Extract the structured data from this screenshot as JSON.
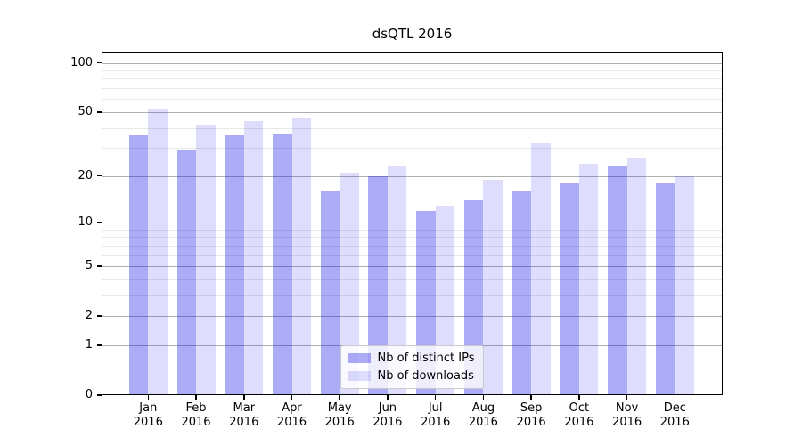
{
  "chart_data": {
    "type": "bar",
    "title": "dsQTL 2016",
    "x": {
      "categories": [
        "Jan",
        "Feb",
        "Mar",
        "Apr",
        "May",
        "Jun",
        "Jul",
        "Aug",
        "Sep",
        "Oct",
        "Nov",
        "Dec"
      ],
      "year": "2016"
    },
    "y_axis": {
      "scale": "log1p",
      "ticks": [
        0,
        1,
        2,
        5,
        10,
        20,
        50,
        100
      ],
      "minor_gridlines": [
        3,
        4,
        6,
        7,
        8,
        9,
        30,
        40,
        60,
        70,
        80,
        90
      ],
      "max": 117,
      "grid": true
    },
    "series": [
      {
        "name": "Nb of distinct IPs",
        "color": "rgba(10,10,230,0.34)",
        "values": [
          36,
          29,
          36,
          37,
          16,
          20,
          12,
          14,
          16,
          18,
          23,
          18
        ]
      },
      {
        "name": "Nb of downloads",
        "color": "rgba(10,10,230,0.135)",
        "values": [
          52,
          42,
          44,
          46,
          21,
          23,
          13,
          19,
          32,
          24,
          26,
          20
        ]
      }
    ],
    "legend": {
      "position": "lower center"
    }
  },
  "colors": {
    "background": "#ffffff",
    "axis": "#000000",
    "major_grid": "#b0b0b0",
    "minor_grid": "#e8e8e8",
    "legend_border": "#cbcbcb"
  }
}
